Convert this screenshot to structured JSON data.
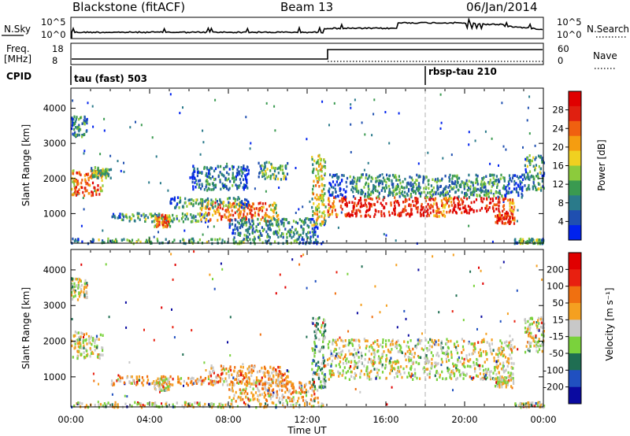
{
  "header": {
    "station": "Blackstone (fitACF)",
    "beam": "Beam 13",
    "date": "06/Jan/2014"
  },
  "noise_panel": {
    "left_label": "N.Sky",
    "left_ticks": [
      "10^5",
      "10^0"
    ],
    "right_ticks": [
      "10^5",
      "10^0"
    ],
    "right_label": "N.Search"
  },
  "freq_panel": {
    "left_label_1": "Freq.",
    "left_label_2": "[MHz]",
    "left_ticks": [
      "18",
      "8"
    ],
    "right_ticks": [
      "60",
      "0"
    ],
    "right_label": "Nave"
  },
  "cpid_panel": {
    "label": "CPID",
    "modes": [
      {
        "name": "tau (fast) 503",
        "start_hour": 0
      },
      {
        "name": "rbsp-tau 210",
        "start_hour": 18
      }
    ]
  },
  "x_axis": {
    "label": "Time UT",
    "ticks": [
      "00:00",
      "04:00",
      "08:00",
      "12:00",
      "16:00",
      "20:00",
      "00:00"
    ]
  },
  "chart_data": [
    {
      "type": "heatmap",
      "title": "",
      "xlabel": "Time UT",
      "ylabel": "Slant Range [km]",
      "xlim_hours": [
        0,
        24
      ],
      "ylim_km": [
        180,
        4550
      ],
      "y_ticks": [
        "4000",
        "3000",
        "2000",
        "1000"
      ],
      "colorbar": {
        "label": "Power [dB]",
        "ticks": [
          "28",
          "24",
          "20",
          "16",
          "12",
          "8",
          "4"
        ],
        "colors": [
          "#0022ee",
          "#1f4fb0",
          "#2a7a8a",
          "#3a9a50",
          "#8ccb3c",
          "#f0d020",
          "#f59d10",
          "#f06010",
          "#e02010",
          "#e00000"
        ]
      },
      "regions": [
        {
          "t0": 0.0,
          "t1": 1.6,
          "r0": 1550,
          "r1": 2300,
          "level": 0.78
        },
        {
          "t0": 1.0,
          "t1": 2.0,
          "r0": 2050,
          "r1": 2350,
          "level": 0.4
        },
        {
          "t0": 0.0,
          "t1": 0.8,
          "r0": 3200,
          "r1": 3800,
          "level": 0.3
        },
        {
          "t0": 2.0,
          "t1": 7.0,
          "r0": 800,
          "r1": 1050,
          "level": 0.35
        },
        {
          "t0": 4.2,
          "t1": 5.0,
          "r0": 650,
          "r1": 1000,
          "level": 0.7
        },
        {
          "t0": 6.5,
          "t1": 10.5,
          "r0": 800,
          "r1": 1350,
          "level": 0.72
        },
        {
          "t0": 5.0,
          "t1": 9.0,
          "r0": 1200,
          "r1": 1500,
          "level": 0.35
        },
        {
          "t0": 6.0,
          "t1": 9.0,
          "r0": 1700,
          "r1": 2400,
          "level": 0.25
        },
        {
          "t0": 9.5,
          "t1": 11.0,
          "r0": 2000,
          "r1": 2500,
          "level": 0.4
        },
        {
          "t0": 8.0,
          "t1": 12.5,
          "r0": 350,
          "r1": 900,
          "level": 0.3
        },
        {
          "t0": 12.2,
          "t1": 12.9,
          "r0": 700,
          "r1": 2700,
          "level": 0.55
        },
        {
          "t0": 13.0,
          "t1": 19.0,
          "r0": 950,
          "r1": 1500,
          "level": 0.88
        },
        {
          "t0": 19.0,
          "t1": 22.5,
          "r0": 1050,
          "r1": 1500,
          "level": 0.9
        },
        {
          "t0": 13.0,
          "t1": 23.0,
          "r0": 1500,
          "r1": 2150,
          "level": 0.3
        },
        {
          "t0": 21.5,
          "t1": 22.5,
          "r0": 750,
          "r1": 1050,
          "level": 0.85
        },
        {
          "t0": 23.0,
          "t1": 24.0,
          "r0": 1700,
          "r1": 2700,
          "level": 0.35
        },
        {
          "t0": 0.0,
          "t1": 12.8,
          "r0": 180,
          "r1": 320,
          "level": 0.35
        },
        {
          "t0": 22.5,
          "t1": 24.0,
          "r0": 180,
          "r1": 320,
          "level": 0.4
        }
      ]
    },
    {
      "type": "heatmap",
      "title": "",
      "xlabel": "Time UT",
      "ylabel": "Slant Range [km]",
      "xlim_hours": [
        0,
        24
      ],
      "ylim_km": [
        180,
        4550
      ],
      "y_ticks": [
        "4000",
        "3000",
        "2000",
        "1000"
      ],
      "colorbar": {
        "label": "Velocity [m s⁻¹]",
        "ticks": [
          "200",
          "100",
          "50",
          "15",
          "-15",
          "-50",
          "-100",
          "-200"
        ],
        "colors": [
          "#0a0aa0",
          "#2050c0",
          "#1f6e52",
          "#7ad23c",
          "#c8c8c8",
          "#f5a020",
          "#f07010",
          "#e82010",
          "#e00000"
        ]
      },
      "regions": [
        {
          "t0": 0.0,
          "t1": 1.6,
          "r0": 1550,
          "r1": 2300,
          "level": 0.5
        },
        {
          "t0": 0.0,
          "t1": 0.8,
          "r0": 3200,
          "r1": 3800,
          "level": 0.5
        },
        {
          "t0": 2.0,
          "t1": 7.5,
          "r0": 800,
          "r1": 1050,
          "level": 0.62
        },
        {
          "t0": 4.2,
          "t1": 5.0,
          "r0": 650,
          "r1": 1000,
          "level": 0.5
        },
        {
          "t0": 7.0,
          "t1": 11.0,
          "r0": 800,
          "r1": 1350,
          "level": 0.63
        },
        {
          "t0": 8.0,
          "t1": 12.5,
          "r0": 350,
          "r1": 900,
          "level": 0.6
        },
        {
          "t0": 12.2,
          "t1": 12.9,
          "r0": 700,
          "r1": 2700,
          "level": 0.35
        },
        {
          "t0": 13.0,
          "t1": 22.5,
          "r0": 950,
          "r1": 2100,
          "level": 0.5
        },
        {
          "t0": 21.5,
          "t1": 22.5,
          "r0": 750,
          "r1": 1050,
          "level": 0.5
        },
        {
          "t0": 23.0,
          "t1": 24.0,
          "r0": 1700,
          "r1": 2700,
          "level": 0.5
        },
        {
          "t0": 0.0,
          "t1": 12.8,
          "r0": 180,
          "r1": 320,
          "level": 0.5
        },
        {
          "t0": 22.5,
          "t1": 24.0,
          "r0": 180,
          "r1": 320,
          "level": 0.5
        }
      ]
    }
  ]
}
